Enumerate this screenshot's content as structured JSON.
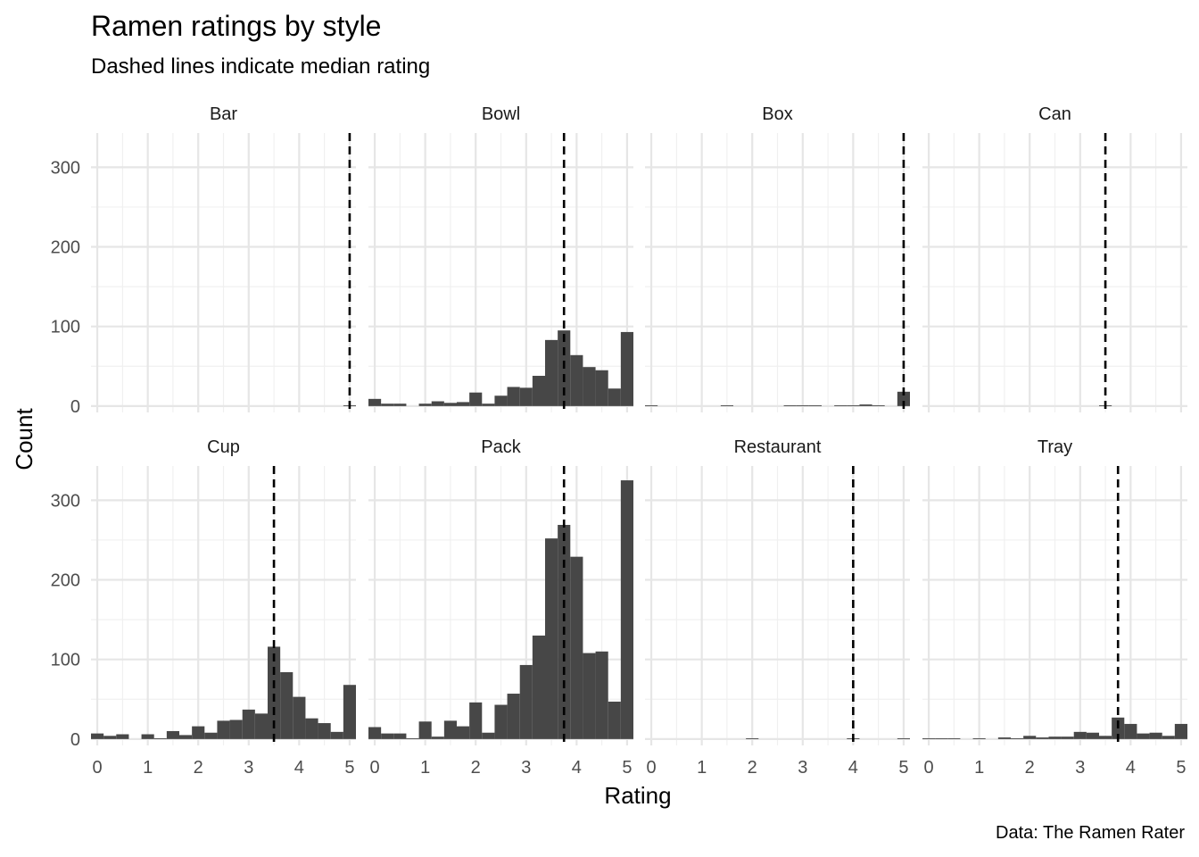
{
  "chart_data": {
    "type": "bar",
    "subtype": "faceted-histogram",
    "title": "Ramen ratings by style",
    "subtitle": "Dashed lines indicate median rating",
    "xlabel": "Rating",
    "ylabel": "Count",
    "caption": "Data: The Ramen Rater",
    "xlim": [
      -0.125,
      5.125
    ],
    "ylim": [
      -8,
      343
    ],
    "x_ticks": [
      0,
      1,
      2,
      3,
      4,
      5
    ],
    "y_ticks": [
      0,
      100,
      200,
      300
    ],
    "grid": true,
    "bin_width": 0.25,
    "bin_starts": [
      -0.125,
      0.125,
      0.375,
      0.625,
      0.875,
      1.125,
      1.375,
      1.625,
      1.875,
      2.125,
      2.375,
      2.625,
      2.875,
      3.125,
      3.375,
      3.625,
      3.875,
      4.125,
      4.375,
      4.625,
      4.875
    ],
    "bar_color": "#474747",
    "median_line_color": "#000000",
    "panels": [
      {
        "name": "Bar",
        "median": 5.0,
        "counts": [
          0,
          0,
          0,
          0,
          0,
          0,
          0,
          0,
          0,
          0,
          0,
          0,
          0,
          0,
          0,
          0,
          0,
          0,
          0,
          0,
          1
        ]
      },
      {
        "name": "Bowl",
        "median": 3.75,
        "counts": [
          9,
          3,
          3,
          0,
          3,
          6,
          4,
          5,
          17,
          3,
          13,
          24,
          23,
          38,
          83,
          95,
          64,
          49,
          45,
          22,
          93
        ]
      },
      {
        "name": "Box",
        "median": 5.0,
        "counts": [
          1,
          0,
          0,
          0,
          0,
          0,
          1,
          0,
          0,
          0,
          0,
          1,
          1,
          1,
          0,
          1,
          1,
          2,
          1,
          0,
          18
        ]
      },
      {
        "name": "Can",
        "median": 3.5,
        "counts": [
          0,
          0,
          0,
          0,
          0,
          0,
          0,
          0,
          0,
          0,
          0,
          0,
          0,
          0,
          1,
          0,
          0,
          0,
          0,
          0,
          0
        ]
      },
      {
        "name": "Cup",
        "median": 3.5,
        "counts": [
          7,
          4,
          6,
          0,
          6,
          1,
          10,
          5,
          16,
          8,
          23,
          24,
          37,
          32,
          116,
          84,
          53,
          26,
          20,
          9,
          68
        ]
      },
      {
        "name": "Pack",
        "median": 3.75,
        "counts": [
          15,
          7,
          7,
          1,
          22,
          3,
          23,
          16,
          46,
          8,
          43,
          57,
          93,
          130,
          252,
          269,
          229,
          108,
          110,
          47,
          325
        ]
      },
      {
        "name": "Restaurant",
        "median": 4.0,
        "counts": [
          0,
          0,
          0,
          0,
          0,
          0,
          0,
          0,
          1,
          0,
          0,
          0,
          0,
          0,
          0,
          0,
          1,
          0,
          0,
          0,
          1
        ]
      },
      {
        "name": "Tray",
        "median": 3.75,
        "counts": [
          1,
          1,
          1,
          0,
          1,
          0,
          2,
          1,
          4,
          2,
          3,
          3,
          9,
          8,
          4,
          27,
          19,
          7,
          8,
          4,
          19
        ]
      }
    ]
  }
}
